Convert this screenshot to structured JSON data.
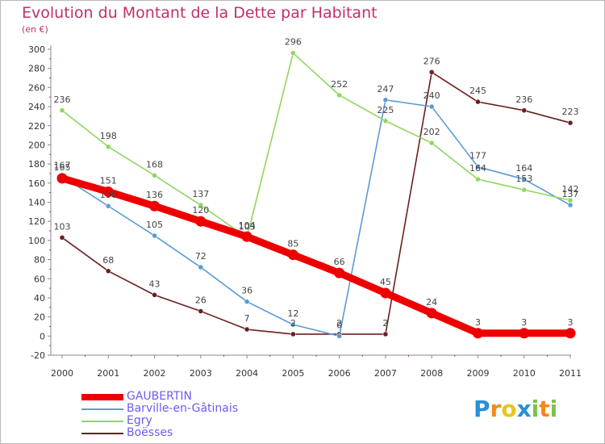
{
  "title": "Evolution du Montant de la Dette par Habitant",
  "subtitle": "(en €)",
  "colors": {
    "GAUBERTIN": "#ee0000",
    "Barville": "#5b9bd5",
    "Egry": "#8ed660",
    "Boesses": "#6b1e1e"
  },
  "logo": {
    "letters": [
      "P",
      "r",
      "o",
      "x",
      "i",
      "t",
      "i"
    ],
    "colors": [
      "#2a8fd6",
      "#f08a1c",
      "#e8c41c",
      "#2a8fd6",
      "#7dc24a",
      "#f08a1c",
      "#7dc24a"
    ]
  },
  "chart_data": {
    "type": "line",
    "title": "Evolution du Montant de la Dette par Habitant",
    "subtitle": "(en €)",
    "x": [
      "2000",
      "2001",
      "2002",
      "2003",
      "2004",
      "2005",
      "2006",
      "2007",
      "2008",
      "2009",
      "2010",
      "2011"
    ],
    "ylim": [
      -20,
      300
    ],
    "yticks": [
      -20,
      0,
      20,
      40,
      60,
      80,
      100,
      120,
      140,
      160,
      180,
      200,
      220,
      240,
      260,
      280,
      300
    ],
    "grid": false,
    "legend": "bottom-left",
    "series": [
      {
        "name": "Boësses",
        "key": "Boesses",
        "values": [
          103,
          68,
          43,
          26,
          7,
          2,
          2,
          2,
          276,
          245,
          236,
          223
        ]
      },
      {
        "name": "Barville-en-Gâtinais",
        "key": "Barville",
        "values": [
          167,
          136,
          105,
          72,
          36,
          12,
          0,
          247,
          240,
          177,
          164,
          137
        ]
      },
      {
        "name": "Egry",
        "key": "Egry",
        "values": [
          236,
          198,
          168,
          137,
          103,
          296,
          252,
          225,
          202,
          164,
          153,
          142
        ]
      },
      {
        "name": "GAUBERTIN",
        "key": "GAUBERTIN",
        "values": [
          165,
          151,
          136,
          120,
          104,
          85,
          66,
          45,
          24,
          3,
          3,
          3
        ]
      }
    ],
    "legend_order": [
      "GAUBERTIN",
      "Barville-en-Gâtinais",
      "Egry",
      "Boësses"
    ]
  }
}
